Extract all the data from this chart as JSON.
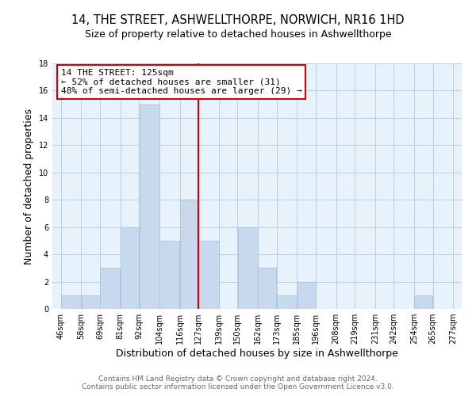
{
  "title": "14, THE STREET, ASHWELLTHORPE, NORWICH, NR16 1HD",
  "subtitle": "Size of property relative to detached houses in Ashwellthorpe",
  "xlabel": "Distribution of detached houses by size in Ashwellthorpe",
  "ylabel": "Number of detached properties",
  "bar_color": "#c8d9ed",
  "bar_edge_color": "#a8c4de",
  "grid_color": "#b8cfe8",
  "bg_color": "#e8f2fb",
  "ref_line_color": "#cc0000",
  "ref_line_x": 127,
  "annotation_title": "14 THE STREET: 125sqm",
  "annotation_line1": "← 52% of detached houses are smaller (31)",
  "annotation_line2": "48% of semi-detached houses are larger (29) →",
  "annotation_box_edge": "#cc0000",
  "bins": [
    46,
    58,
    69,
    81,
    92,
    104,
    116,
    127,
    139,
    150,
    162,
    173,
    185,
    196,
    208,
    219,
    231,
    242,
    254,
    265,
    277
  ],
  "counts": [
    1,
    1,
    3,
    6,
    15,
    5,
    8,
    5,
    0,
    6,
    3,
    1,
    2,
    0,
    0,
    0,
    0,
    0,
    1,
    0
  ],
  "tick_labels": [
    "46sqm",
    "58sqm",
    "69sqm",
    "81sqm",
    "92sqm",
    "104sqm",
    "116sqm",
    "127sqm",
    "139sqm",
    "150sqm",
    "162sqm",
    "173sqm",
    "185sqm",
    "196sqm",
    "208sqm",
    "219sqm",
    "231sqm",
    "242sqm",
    "254sqm",
    "265sqm",
    "277sqm"
  ],
  "ylim": [
    0,
    18
  ],
  "yticks": [
    0,
    2,
    4,
    6,
    8,
    10,
    12,
    14,
    16,
    18
  ],
  "footer1": "Contains HM Land Registry data © Crown copyright and database right 2024.",
  "footer2": "Contains public sector information licensed under the Open Government Licence v3.0.",
  "title_fontsize": 10.5,
  "subtitle_fontsize": 9,
  "axis_label_fontsize": 9,
  "tick_fontsize": 7,
  "footer_fontsize": 6.5,
  "annotation_fontsize": 8
}
